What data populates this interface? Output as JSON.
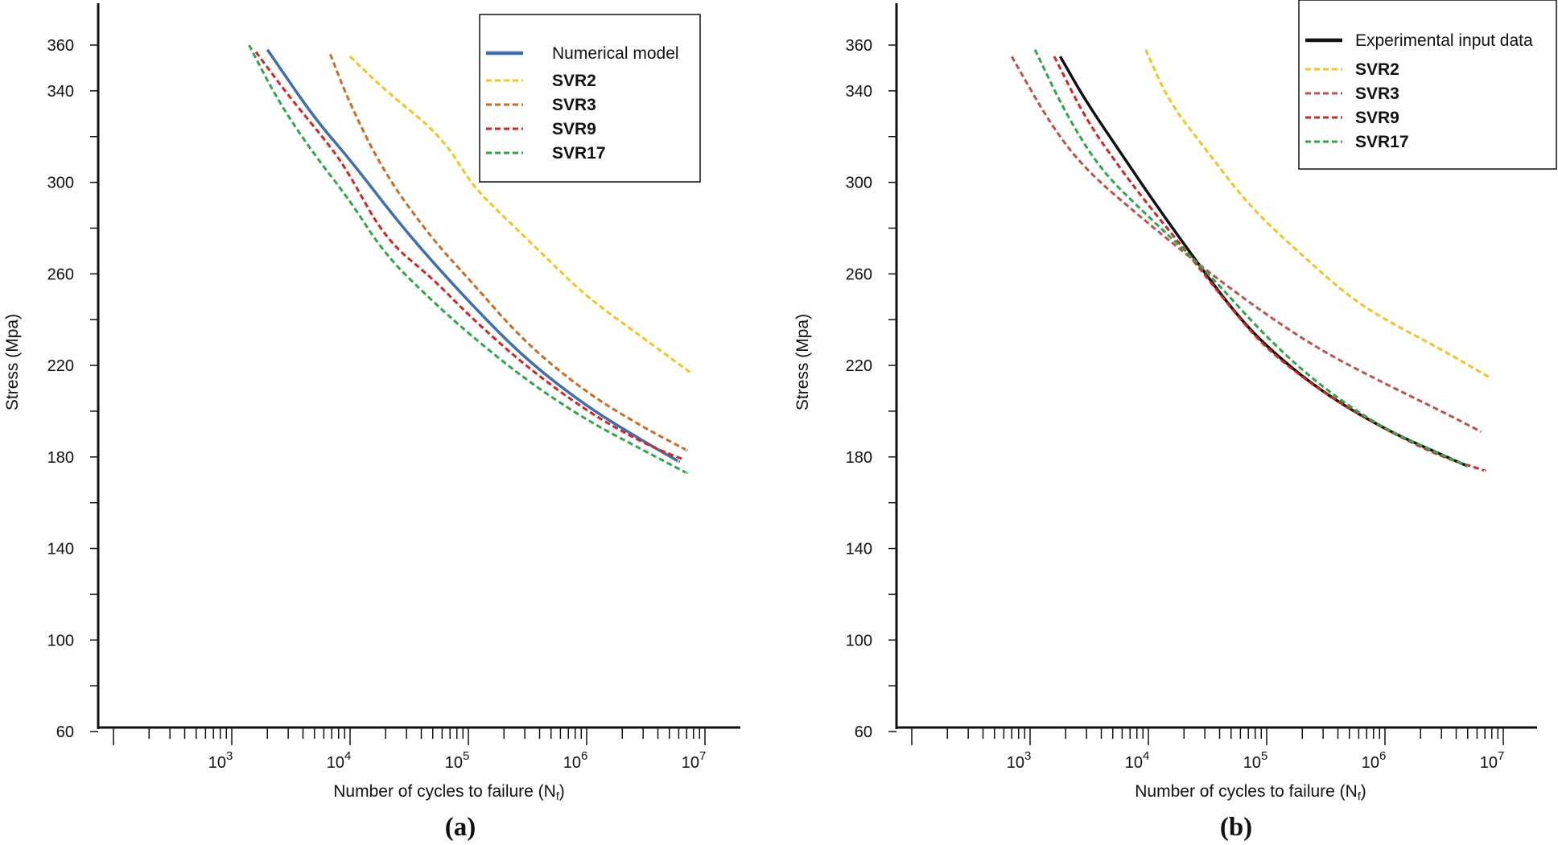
{
  "chart_data": [
    {
      "type": "line",
      "panel_label": "(a)",
      "xscale": "log",
      "xlabel": "Number of cycles to failure (N",
      "xlabel_sub": "f",
      "xlabel_end": ")",
      "ylabel": "Stress (Mpa)",
      "ylim": [
        60,
        380
      ],
      "xlim_log10": [
        1.9,
        7.45
      ],
      "yticks": [
        60,
        100,
        140,
        180,
        220,
        260,
        300,
        340,
        360
      ],
      "xticks": [
        {
          "base": "10",
          "exp": "3",
          "log10": 3
        },
        {
          "base": "10",
          "exp": "4",
          "log10": 4
        },
        {
          "base": "10",
          "exp": "5",
          "log10": 5
        },
        {
          "base": "10",
          "exp": "6",
          "log10": 6
        },
        {
          "base": "10",
          "exp": "7",
          "log10": 7
        }
      ],
      "legend": {
        "placement": "top-right",
        "entries": [
          "Numerical model",
          "SVR2",
          "SVR3",
          "SVR9",
          "SVR17"
        ]
      },
      "series": [
        {
          "name": "Numerical model",
          "color": "#3d6fb0",
          "style": "solid",
          "bold": false,
          "x": [
            2000,
            5000,
            10000,
            30000,
            100000,
            300000,
            1000000,
            3000000,
            6000000
          ],
          "y": [
            358,
            328,
            310,
            278,
            248,
            223,
            202,
            187,
            178
          ]
        },
        {
          "name": "SVR2",
          "color": "#f5c518",
          "style": "dashed",
          "bold": true,
          "x": [
            10000,
            20000,
            60000,
            110000,
            200000,
            500000,
            1000000,
            3000000,
            7500000
          ],
          "y": [
            355,
            340,
            320,
            298,
            285,
            265,
            250,
            232,
            217
          ]
        },
        {
          "name": "SVR3",
          "color": "#d2691e",
          "style": "dashed",
          "bold": true,
          "x": [
            6800,
            10000,
            20000,
            50000,
            100000,
            300000,
            1000000,
            3000000,
            7000000
          ],
          "y": [
            356,
            334,
            303,
            275,
            258,
            230,
            208,
            193,
            183
          ]
        },
        {
          "name": "SVR9",
          "color": "#e02020",
          "style": "dashed",
          "bold": true,
          "x": [
            1600,
            3000,
            7000,
            10000,
            20000,
            50000,
            100000,
            300000,
            1000000,
            3000000,
            6500000
          ],
          "y": [
            357,
            338,
            315,
            303,
            275,
            258,
            242,
            220,
            200,
            186,
            179
          ]
        },
        {
          "name": "SVR17",
          "color": "#2aa84a",
          "style": "dashed",
          "bold": true,
          "x": [
            1400,
            2500,
            5000,
            10000,
            20000,
            50000,
            100000,
            300000,
            1000000,
            3000000,
            7000000
          ],
          "y": [
            360,
            335,
            312,
            292,
            268,
            248,
            234,
            214,
            196,
            183,
            173
          ]
        }
      ]
    },
    {
      "type": "line",
      "panel_label": "(b)",
      "xscale": "log",
      "xlabel": "Number of cycles to failure (N",
      "xlabel_sub": "f",
      "xlabel_end": ")",
      "ylabel": "Stress (Mpa)",
      "ylim": [
        60,
        380
      ],
      "xlim_log10": [
        1.9,
        7.45
      ],
      "yticks": [
        60,
        100,
        140,
        180,
        220,
        260,
        300,
        340,
        360
      ],
      "xticks": [
        {
          "base": "10",
          "exp": "3",
          "log10": 3
        },
        {
          "base": "10",
          "exp": "4",
          "log10": 4
        },
        {
          "base": "10",
          "exp": "5",
          "log10": 5
        },
        {
          "base": "10",
          "exp": "6",
          "log10": 6
        },
        {
          "base": "10",
          "exp": "7",
          "log10": 7
        }
      ],
      "legend": {
        "placement": "top-right",
        "entries": [
          "Experimental input data",
          "SVR2",
          "SVR3",
          "SVR9",
          "SVR17"
        ]
      },
      "series": [
        {
          "name": "Experimental input data",
          "color": "#111111",
          "style": "solid",
          "bold": false,
          "x": [
            1800,
            3000,
            6000,
            10000,
            20000,
            50000,
            100000,
            300000,
            1000000,
            3000000,
            5000000
          ],
          "y": [
            355,
            335,
            312,
            295,
            273,
            245,
            228,
            208,
            192,
            181,
            176
          ]
        },
        {
          "name": "SVR2",
          "color": "#f5c518",
          "style": "dashed",
          "bold": true,
          "x": [
            9500,
            15000,
            30000,
            70000,
            200000,
            500000,
            1000000,
            3000000,
            7500000
          ],
          "y": [
            358,
            335,
            315,
            290,
            268,
            250,
            240,
            227,
            215
          ]
        },
        {
          "name": "SVR3",
          "color": "#c0504d",
          "style": "dashed",
          "bold": true,
          "x": [
            700,
            1500,
            3000,
            10000,
            30000,
            100000,
            300000,
            1000000,
            3000000,
            6500000
          ],
          "y": [
            355,
            325,
            305,
            282,
            262,
            242,
            226,
            212,
            200,
            191
          ]
        },
        {
          "name": "SVR9",
          "color": "#e02020",
          "style": "dashed",
          "bold": true,
          "x": [
            1600,
            3000,
            6000,
            10000,
            20000,
            50000,
            100000,
            300000,
            1000000,
            3000000,
            7000000
          ],
          "y": [
            355,
            327,
            305,
            290,
            271,
            245,
            227,
            208,
            192,
            180,
            174
          ]
        },
        {
          "name": "SVR17",
          "color": "#2aa84a",
          "style": "dashed",
          "bold": true,
          "x": [
            1100,
            2000,
            4000,
            10000,
            30000,
            100000,
            300000,
            1000000,
            3000000,
            5000000
          ],
          "y": [
            358,
            330,
            305,
            285,
            262,
            232,
            210,
            192,
            181,
            176
          ]
        }
      ]
    }
  ]
}
